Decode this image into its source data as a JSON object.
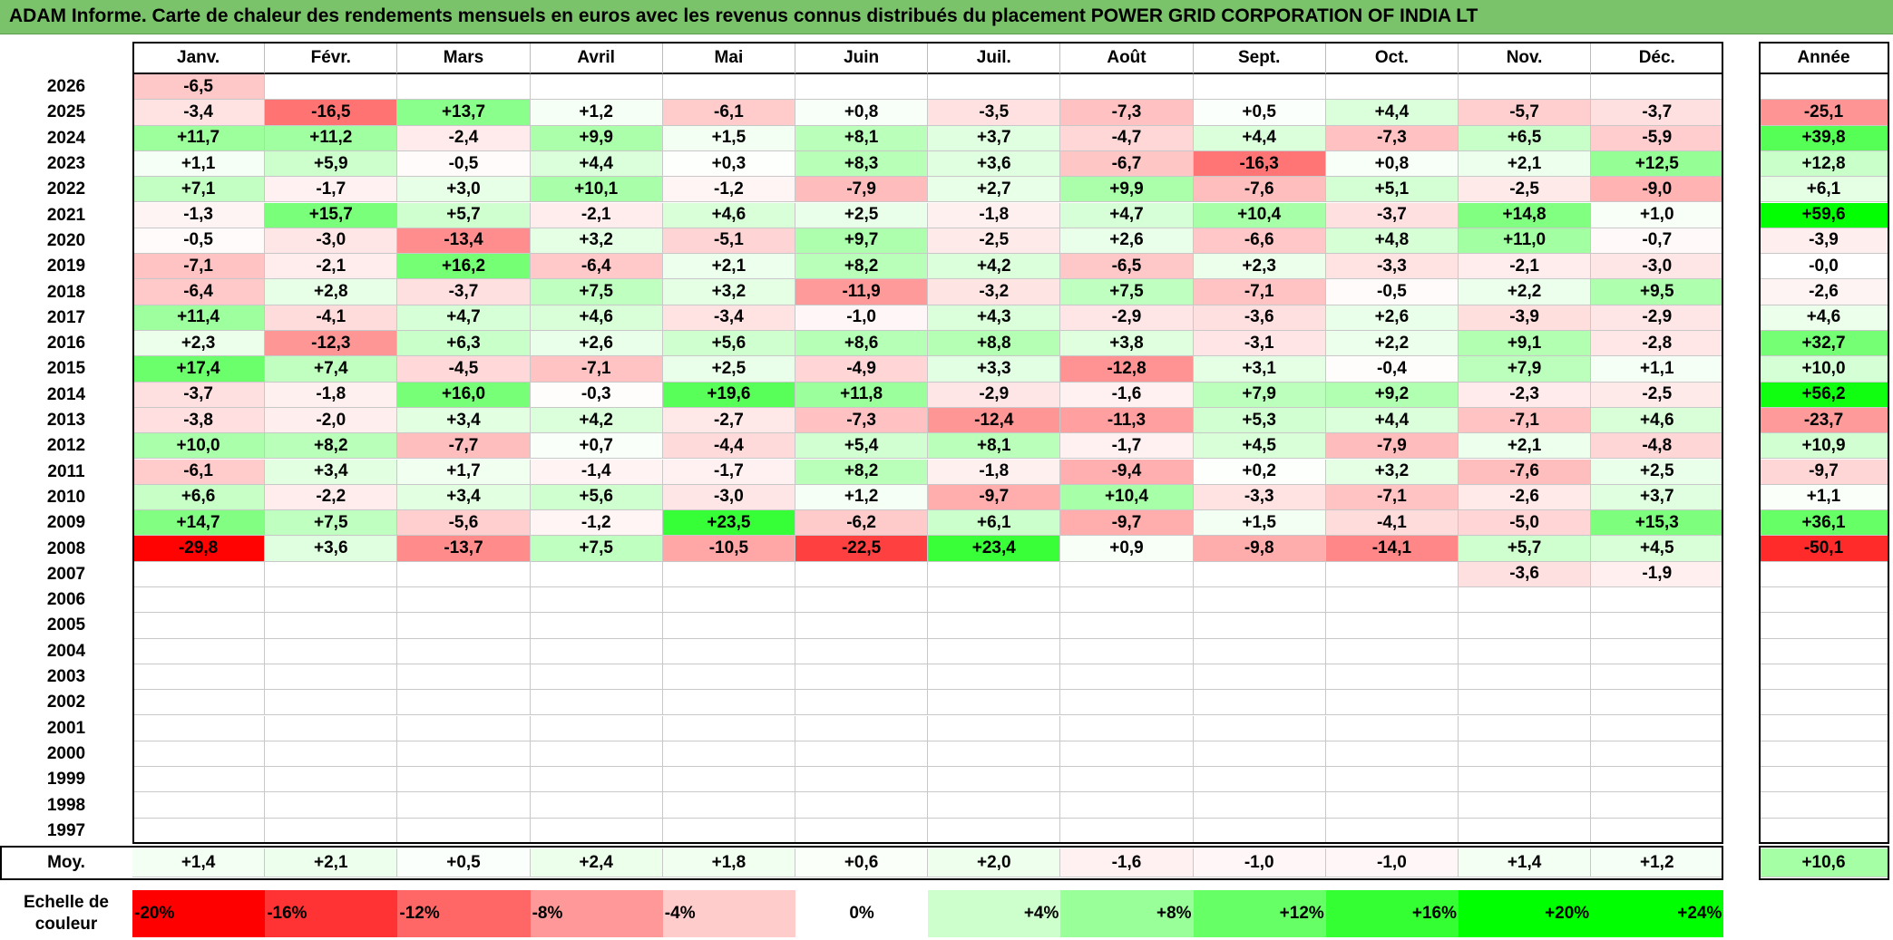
{
  "title": "ADAM Informe. Carte de chaleur des rendements mensuels en euros avec les revenus connus distribués du placement POWER GRID CORPORATION OF INDIA LT",
  "months": [
    "Janv.",
    "Févr.",
    "Mars",
    "Avril",
    "Mai",
    "Juin",
    "Juil.",
    "Août",
    "Sept.",
    "Oct.",
    "Nov.",
    "Déc."
  ],
  "year_header": "Année",
  "avg_label": "Moy.",
  "legend_title": "Echelle de couleur",
  "colors": {
    "negative": "#ff0000",
    "neutral": "#ffffff",
    "positive": "#00ff00",
    "title_bg": "#7ac36a"
  },
  "chart_data": {
    "type": "heatmap",
    "title": "ADAM Informe. Carte de chaleur des rendements mensuels en euros avec les revenus connus distribués du placement POWER GRID CORPORATION OF INDIA LT",
    "columns": [
      "Janv.",
      "Févr.",
      "Mars",
      "Avril",
      "Mai",
      "Juin",
      "Juil.",
      "Août",
      "Sept.",
      "Oct.",
      "Nov.",
      "Déc."
    ],
    "rows": [
      {
        "year": "2026",
        "values": [
          "-6,5",
          "",
          "",
          "",
          "",
          "",
          "",
          "",
          "",
          "",
          "",
          ""
        ],
        "annual": ""
      },
      {
        "year": "2025",
        "values": [
          "-3,4",
          "-16,5",
          "+13,7",
          "+1,2",
          "-6,1",
          "+0,8",
          "-3,5",
          "-7,3",
          "+0,5",
          "+4,4",
          "-5,7",
          "-3,7"
        ],
        "annual": "-25,1"
      },
      {
        "year": "2024",
        "values": [
          "+11,7",
          "+11,2",
          "-2,4",
          "+9,9",
          "+1,5",
          "+8,1",
          "+3,7",
          "-4,7",
          "+4,4",
          "-7,3",
          "+6,5",
          "-5,9"
        ],
        "annual": "+39,8"
      },
      {
        "year": "2023",
        "values": [
          "+1,1",
          "+5,9",
          "-0,5",
          "+4,4",
          "+0,3",
          "+8,3",
          "+3,6",
          "-6,7",
          "-16,3",
          "+0,8",
          "+2,1",
          "+12,5"
        ],
        "annual": "+12,8"
      },
      {
        "year": "2022",
        "values": [
          "+7,1",
          "-1,7",
          "+3,0",
          "+10,1",
          "-1,2",
          "-7,9",
          "+2,7",
          "+9,9",
          "-7,6",
          "+5,1",
          "-2,5",
          "-9,0"
        ],
        "annual": "+6,1"
      },
      {
        "year": "2021",
        "values": [
          "-1,3",
          "+15,7",
          "+5,7",
          "-2,1",
          "+4,6",
          "+2,5",
          "-1,8",
          "+4,7",
          "+10,4",
          "-3,7",
          "+14,8",
          "+1,0"
        ],
        "annual": "+59,6"
      },
      {
        "year": "2020",
        "values": [
          "-0,5",
          "-3,0",
          "-13,4",
          "+3,2",
          "-5,1",
          "+9,7",
          "-2,5",
          "+2,6",
          "-6,6",
          "+4,8",
          "+11,0",
          "-0,7"
        ],
        "annual": "-3,9"
      },
      {
        "year": "2019",
        "values": [
          "-7,1",
          "-2,1",
          "+16,2",
          "-6,4",
          "+2,1",
          "+8,2",
          "+4,2",
          "-6,5",
          "+2,3",
          "-3,3",
          "-2,1",
          "-3,0"
        ],
        "annual": "-0,0"
      },
      {
        "year": "2018",
        "values": [
          "-6,4",
          "+2,8",
          "-3,7",
          "+7,5",
          "+3,2",
          "-11,9",
          "-3,2",
          "+7,5",
          "-7,1",
          "-0,5",
          "+2,2",
          "+9,5"
        ],
        "annual": "-2,6"
      },
      {
        "year": "2017",
        "values": [
          "+11,4",
          "-4,1",
          "+4,7",
          "+4,6",
          "-3,4",
          "-1,0",
          "+4,3",
          "-2,9",
          "-3,6",
          "+2,6",
          "-3,9",
          "-2,9"
        ],
        "annual": "+4,6"
      },
      {
        "year": "2016",
        "values": [
          "+2,3",
          "-12,3",
          "+6,3",
          "+2,6",
          "+5,6",
          "+8,6",
          "+8,8",
          "+3,8",
          "-3,1",
          "+2,2",
          "+9,1",
          "-2,8"
        ],
        "annual": "+32,7"
      },
      {
        "year": "2015",
        "values": [
          "+17,4",
          "+7,4",
          "-4,5",
          "-7,1",
          "+2,5",
          "-4,9",
          "+3,3",
          "-12,8",
          "+3,1",
          "-0,4",
          "+7,9",
          "+1,1"
        ],
        "annual": "+10,0"
      },
      {
        "year": "2014",
        "values": [
          "-3,7",
          "-1,8",
          "+16,0",
          "-0,3",
          "+19,6",
          "+11,8",
          "-2,9",
          "-1,6",
          "+7,9",
          "+9,2",
          "-2,3",
          "-2,5"
        ],
        "annual": "+56,2"
      },
      {
        "year": "2013",
        "values": [
          "-3,8",
          "-2,0",
          "+3,4",
          "+4,2",
          "-2,7",
          "-7,3",
          "-12,4",
          "-11,3",
          "+5,3",
          "+4,4",
          "-7,1",
          "+4,6"
        ],
        "annual": "-23,7"
      },
      {
        "year": "2012",
        "values": [
          "+10,0",
          "+8,2",
          "-7,7",
          "+0,7",
          "-4,4",
          "+5,4",
          "+8,1",
          "-1,7",
          "+4,5",
          "-7,9",
          "+2,1",
          "-4,8"
        ],
        "annual": "+10,9"
      },
      {
        "year": "2011",
        "values": [
          "-6,1",
          "+3,4",
          "+1,7",
          "-1,4",
          "-1,7",
          "+8,2",
          "-1,8",
          "-9,4",
          "+0,2",
          "+3,2",
          "-7,6",
          "+2,5"
        ],
        "annual": "-9,7"
      },
      {
        "year": "2010",
        "values": [
          "+6,6",
          "-2,2",
          "+3,4",
          "+5,6",
          "-3,0",
          "+1,2",
          "-9,7",
          "+10,4",
          "-3,3",
          "-7,1",
          "-2,6",
          "+3,7"
        ],
        "annual": "+1,1"
      },
      {
        "year": "2009",
        "values": [
          "+14,7",
          "+7,5",
          "-5,6",
          "-1,2",
          "+23,5",
          "-6,2",
          "+6,1",
          "-9,7",
          "+1,5",
          "-4,1",
          "-5,0",
          "+15,3"
        ],
        "annual": "+36,1"
      },
      {
        "year": "2008",
        "values": [
          "-29,8",
          "+3,6",
          "-13,7",
          "+7,5",
          "-10,5",
          "-22,5",
          "+23,4",
          "+0,9",
          "-9,8",
          "-14,1",
          "+5,7",
          "+4,5"
        ],
        "annual": "-50,1"
      },
      {
        "year": "2007",
        "values": [
          "",
          "",
          "",
          "",
          "",
          "",
          "",
          "",
          "",
          "",
          "-3,6",
          "-1,9"
        ],
        "annual": ""
      },
      {
        "year": "2006",
        "values": [
          "",
          "",
          "",
          "",
          "",
          "",
          "",
          "",
          "",
          "",
          "",
          ""
        ],
        "annual": ""
      },
      {
        "year": "2005",
        "values": [
          "",
          "",
          "",
          "",
          "",
          "",
          "",
          "",
          "",
          "",
          "",
          ""
        ],
        "annual": ""
      },
      {
        "year": "2004",
        "values": [
          "",
          "",
          "",
          "",
          "",
          "",
          "",
          "",
          "",
          "",
          "",
          ""
        ],
        "annual": ""
      },
      {
        "year": "2003",
        "values": [
          "",
          "",
          "",
          "",
          "",
          "",
          "",
          "",
          "",
          "",
          "",
          ""
        ],
        "annual": ""
      },
      {
        "year": "2002",
        "values": [
          "",
          "",
          "",
          "",
          "",
          "",
          "",
          "",
          "",
          "",
          "",
          ""
        ],
        "annual": ""
      },
      {
        "year": "2001",
        "values": [
          "",
          "",
          "",
          "",
          "",
          "",
          "",
          "",
          "",
          "",
          "",
          ""
        ],
        "annual": ""
      },
      {
        "year": "2000",
        "values": [
          "",
          "",
          "",
          "",
          "",
          "",
          "",
          "",
          "",
          "",
          "",
          ""
        ],
        "annual": ""
      },
      {
        "year": "1999",
        "values": [
          "",
          "",
          "",
          "",
          "",
          "",
          "",
          "",
          "",
          "",
          "",
          ""
        ],
        "annual": ""
      },
      {
        "year": "1998",
        "values": [
          "",
          "",
          "",
          "",
          "",
          "",
          "",
          "",
          "",
          "",
          "",
          ""
        ],
        "annual": ""
      },
      {
        "year": "1997",
        "values": [
          "",
          "",
          "",
          "",
          "",
          "",
          "",
          "",
          "",
          "",
          "",
          ""
        ],
        "annual": ""
      }
    ],
    "averages": [
      "+1,4",
      "+2,1",
      "+0,5",
      "+2,4",
      "+1,8",
      "+0,6",
      "+2,0",
      "-1,6",
      "-1,0",
      "-1,0",
      "+1,4",
      "+1,2"
    ],
    "average_annual": "+10,6",
    "color_scale": [
      {
        "label": "-20%",
        "value": -20
      },
      {
        "label": "-16%",
        "value": -16
      },
      {
        "label": "-12%",
        "value": -12
      },
      {
        "label": "-8%",
        "value": -8
      },
      {
        "label": "-4%",
        "value": -4
      },
      {
        "label": "0%",
        "value": 0
      },
      {
        "label": "+4%",
        "value": 4
      },
      {
        "label": "+8%",
        "value": 8
      },
      {
        "label": "+12%",
        "value": 12
      },
      {
        "label": "+16%",
        "value": 16
      },
      {
        "label": "+20%",
        "value": 20
      },
      {
        "label": "+24%",
        "value": 24
      }
    ]
  }
}
